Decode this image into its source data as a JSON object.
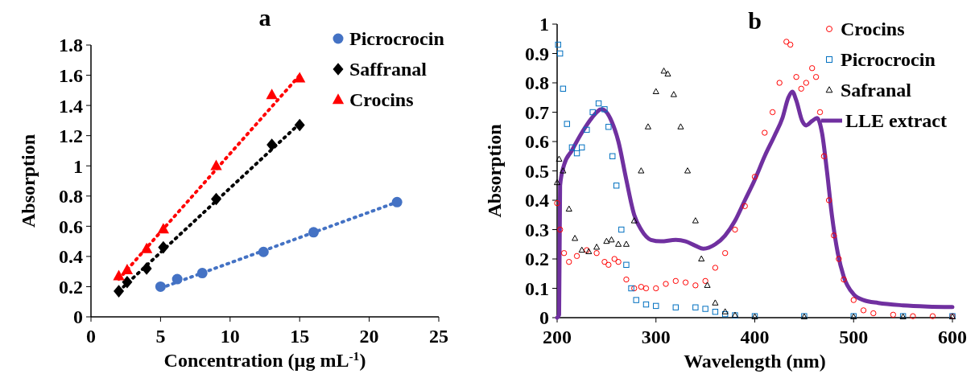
{
  "chart_data": [
    {
      "type": "scatter",
      "title": "a",
      "xlabel": "Concentration (µg mL$^{-1}$)",
      "ylabel": "Absorption",
      "xlim": [
        0,
        25
      ],
      "ylim": [
        0,
        1.8
      ],
      "xticks": [
        0,
        5,
        10,
        15,
        20,
        25
      ],
      "yticks": [
        0,
        0.2,
        0.4,
        0.6,
        0.8,
        1,
        1.2,
        1.4,
        1.6,
        1.8
      ],
      "grid": false,
      "legend": "top right",
      "series": [
        {
          "name": "Picrocrocin",
          "color": "#4472c4",
          "marker": "circle",
          "x": [
            5,
            6.2,
            8,
            12.4,
            16,
            22
          ],
          "values": [
            0.2,
            0.25,
            0.29,
            0.43,
            0.56,
            0.76
          ]
        },
        {
          "name": "Saffranal",
          "color": "#000000",
          "marker": "diamond",
          "x": [
            2,
            2.6,
            4,
            5.2,
            9,
            13,
            15
          ],
          "values": [
            0.17,
            0.23,
            0.32,
            0.46,
            0.78,
            1.14,
            1.27
          ]
        },
        {
          "name": "Crocins",
          "color": "#ff0000",
          "marker": "triangle",
          "x": [
            2,
            2.6,
            4,
            5.2,
            9,
            13,
            15
          ],
          "values": [
            0.27,
            0.31,
            0.45,
            0.58,
            1.0,
            1.47,
            1.58
          ]
        },
        {
          "type": "line",
          "line_style": "dotted",
          "color": "#4472c4",
          "marker": "none",
          "x": [
            5,
            22
          ],
          "values": [
            0.19,
            0.76
          ]
        },
        {
          "type": "line",
          "line_style": "dotted",
          "color": "#000000",
          "marker": "none",
          "x": [
            2,
            15
          ],
          "values": [
            0.17,
            1.28
          ]
        },
        {
          "type": "line",
          "line_style": "dotted",
          "color": "#ff0000",
          "marker": "none",
          "x": [
            2,
            15
          ],
          "values": [
            0.25,
            1.6
          ]
        }
      ]
    },
    {
      "type": "scatter",
      "title": "b",
      "xlabel": "Wavelength (nm)",
      "ylabel": "Absorption",
      "xlim": [
        200,
        600
      ],
      "ylim": [
        0,
        1
      ],
      "xticks": [
        200,
        300,
        400,
        500,
        600
      ],
      "yticks": [
        0,
        0.1,
        0.2,
        0.3,
        0.4,
        0.5,
        0.6,
        0.7,
        0.8,
        0.9,
        1
      ],
      "grid": false,
      "legend": "top right",
      "series": [
        {
          "name": "Crocins",
          "color": "#ff0000",
          "marker": "circle",
          "x": [
            200,
            203,
            207,
            212,
            220,
            230,
            240,
            248,
            252,
            258,
            262,
            270,
            278,
            285,
            290,
            300,
            310,
            320,
            330,
            340,
            350,
            360,
            370,
            380,
            390,
            400,
            410,
            418,
            425,
            432,
            436,
            442,
            447,
            452,
            458,
            462,
            466,
            470,
            475,
            480,
            485,
            490,
            500,
            510,
            520,
            540,
            560,
            580,
            600
          ],
          "values": [
            0.39,
            0.3,
            0.22,
            0.19,
            0.21,
            0.23,
            0.22,
            0.19,
            0.18,
            0.2,
            0.19,
            0.13,
            0.1,
            0.105,
            0.1,
            0.1,
            0.115,
            0.125,
            0.12,
            0.11,
            0.125,
            0.17,
            0.22,
            0.3,
            0.38,
            0.48,
            0.63,
            0.7,
            0.8,
            0.94,
            0.93,
            0.82,
            0.78,
            0.8,
            0.85,
            0.82,
            0.7,
            0.55,
            0.4,
            0.28,
            0.2,
            0.13,
            0.06,
            0.025,
            0.015,
            0.01,
            0.005,
            0.005,
            0.005
          ]
        },
        {
          "name": "Picrocrocin",
          "color": "#0070c0",
          "marker": "square",
          "x": [
            201,
            203,
            206,
            210,
            215,
            220,
            225,
            230,
            236,
            242,
            248,
            252,
            256,
            260,
            265,
            270,
            275,
            280,
            290,
            300,
            320,
            340,
            350,
            360,
            370,
            380,
            400,
            450,
            500,
            550,
            600
          ],
          "values": [
            0.93,
            0.9,
            0.78,
            0.66,
            0.58,
            0.56,
            0.58,
            0.64,
            0.7,
            0.73,
            0.71,
            0.65,
            0.55,
            0.45,
            0.3,
            0.18,
            0.1,
            0.06,
            0.045,
            0.04,
            0.035,
            0.035,
            0.03,
            0.02,
            0.012,
            0.008,
            0.005,
            0.005,
            0.005,
            0.005,
            0.005
          ]
        },
        {
          "name": "Safranal",
          "color": "#000000",
          "marker": "triangle",
          "x": [
            200,
            202,
            206,
            212,
            218,
            225,
            232,
            240,
            250,
            255,
            262,
            270,
            278,
            285,
            292,
            300,
            308,
            312,
            318,
            325,
            332,
            340,
            346,
            352,
            360,
            370,
            380,
            400,
            450,
            500,
            550,
            600
          ],
          "values": [
            0.46,
            0.54,
            0.5,
            0.37,
            0.27,
            0.23,
            0.225,
            0.24,
            0.26,
            0.265,
            0.25,
            0.25,
            0.33,
            0.5,
            0.65,
            0.77,
            0.84,
            0.83,
            0.76,
            0.65,
            0.5,
            0.33,
            0.2,
            0.11,
            0.05,
            0.02,
            0.008,
            0.003,
            0.003,
            0.003,
            0.003,
            0.003
          ]
        },
        {
          "name": "LLE extract",
          "type": "line",
          "line_style": "solid",
          "color": "#7030a0",
          "marker": "none",
          "x": [
            200,
            202,
            203,
            207,
            215,
            225,
            235,
            245,
            255,
            262,
            270,
            278,
            285,
            295,
            305,
            320,
            330,
            340,
            348,
            360,
            370,
            380,
            390,
            400,
            410,
            420,
            428,
            434,
            438,
            442,
            448,
            452,
            458,
            463,
            468,
            473,
            478,
            484,
            490,
            500,
            510,
            525,
            550,
            575,
            600
          ],
          "values": [
            0,
            0.01,
            0.45,
            0.52,
            0.57,
            0.63,
            0.68,
            0.71,
            0.67,
            0.6,
            0.47,
            0.35,
            0.3,
            0.265,
            0.26,
            0.265,
            0.26,
            0.245,
            0.235,
            0.25,
            0.28,
            0.33,
            0.4,
            0.47,
            0.55,
            0.62,
            0.68,
            0.75,
            0.77,
            0.74,
            0.67,
            0.655,
            0.67,
            0.68,
            0.63,
            0.5,
            0.35,
            0.22,
            0.14,
            0.08,
            0.06,
            0.05,
            0.042,
            0.038,
            0.036
          ]
        }
      ]
    }
  ]
}
